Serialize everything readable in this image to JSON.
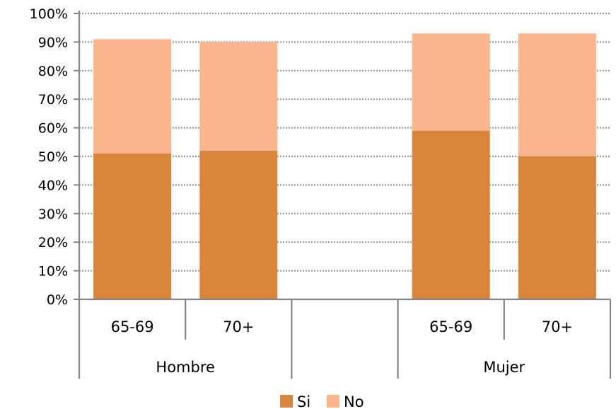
{
  "chart_data": {
    "type": "bar",
    "stacked": true,
    "title": "",
    "xlabel": "",
    "ylabel": "",
    "ylim": [
      0,
      100
    ],
    "y_ticks": [
      "0%",
      "10%",
      "20%",
      "30%",
      "40%",
      "50%",
      "60%",
      "70%",
      "80%",
      "90%",
      "100%"
    ],
    "grid": true,
    "groups": [
      {
        "label": "Hombre",
        "categories": [
          "65-69",
          "70+"
        ]
      },
      {
        "label": "",
        "categories": []
      },
      {
        "label": "Mujer",
        "categories": [
          "65-69",
          "70+"
        ]
      }
    ],
    "categories": [
      "65-69",
      "70+",
      "",
      "65-69",
      "70+"
    ],
    "series": [
      {
        "name": "Si",
        "color": "#d9853b",
        "values": [
          51,
          52,
          null,
          59,
          50
        ]
      },
      {
        "name": "No",
        "color": "#f9b58e",
        "values": [
          40,
          38,
          null,
          34,
          43
        ]
      }
    ],
    "legend_position": "bottom"
  }
}
